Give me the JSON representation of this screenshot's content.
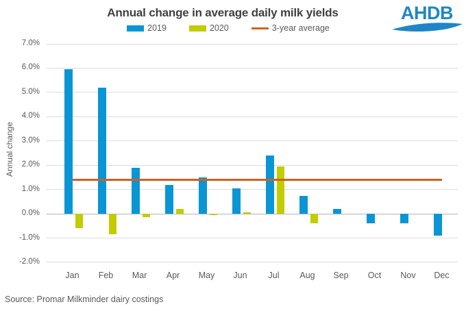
{
  "header": {
    "logo_text": "AHDB",
    "logo_color": "#1e86c7"
  },
  "source": "Source: Promar Milkminder dairy costings",
  "colors": {
    "series_2019": "#0a95d5",
    "series_2020": "#c3cc00",
    "avg_line": "#d2601c",
    "gridline": "#dcdcdc",
    "zero_line": "#b3b3b3",
    "axis_text": "#595959",
    "title_text": "#404040"
  },
  "chart_data": {
    "type": "bar",
    "title": "Annual change in average daily milk yields",
    "ylabel": "Annual change",
    "xlabel": "",
    "categories": [
      "Jan",
      "Feb",
      "Mar",
      "Apr",
      "May",
      "Jun",
      "Jul",
      "Aug",
      "Sep",
      "Oct",
      "Nov",
      "Dec"
    ],
    "series": [
      {
        "name": "2019",
        "type": "bar",
        "color": "#0a95d5",
        "values": [
          5.95,
          5.2,
          1.9,
          1.2,
          1.5,
          1.05,
          2.4,
          0.75,
          0.2,
          -0.4,
          -0.4,
          -0.9
        ]
      },
      {
        "name": "2020",
        "type": "bar",
        "color": "#c3cc00",
        "values": [
          -0.6,
          -0.85,
          -0.15,
          0.2,
          -0.05,
          0.05,
          1.95,
          -0.4,
          null,
          null,
          null,
          null
        ]
      },
      {
        "name": "3-year average",
        "type": "line",
        "color": "#d2601c",
        "value": 1.4
      }
    ],
    "ylim": [
      -2.0,
      7.0
    ],
    "yticks": [
      7,
      6,
      5,
      4,
      3,
      2,
      1,
      0,
      -1,
      -2
    ],
    "ytick_labels": [
      "7.0%",
      "6.0%",
      "5.0%",
      "4.0%",
      "3.0%",
      "2.0%",
      "1.0%",
      "0.0%",
      "-1.0%",
      "-2.0%"
    ],
    "grid": true,
    "legend_position": "top"
  }
}
